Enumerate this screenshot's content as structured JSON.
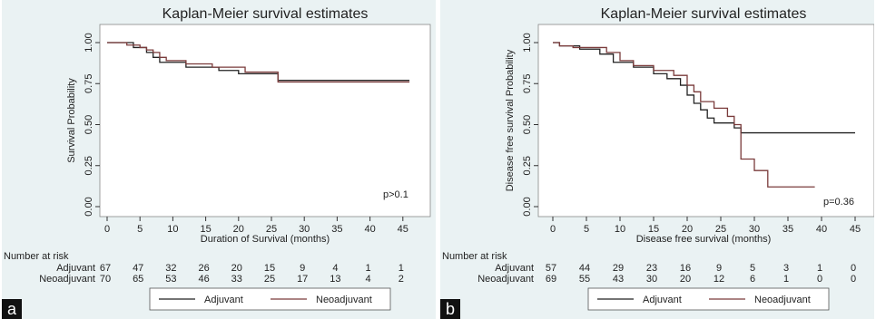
{
  "panels": [
    {
      "id": "a",
      "letter": "a",
      "title": "Kaplan-Meier survival estimates",
      "xlabel": "Duration of Survival (months)",
      "ylabel": "Survival Probability",
      "annotation": "p>0.1",
      "risk_header": "Number at risk",
      "legend": [
        "Adjuvant",
        "Neoadjuvant"
      ]
    },
    {
      "id": "b",
      "letter": "b",
      "title": "Kaplan-Meier survival estimates",
      "xlabel": "Disease free survival (months)",
      "ylabel": "Disease free survival Probability",
      "annotation": "p=0.36",
      "risk_header": "Number at risk",
      "legend": [
        "Adjuvant",
        "Neoadjuvant"
      ]
    }
  ],
  "chart_data": [
    {
      "type": "line",
      "step": true,
      "title": "Kaplan-Meier survival estimates",
      "xlabel": "Duration of Survival (months)",
      "ylabel": "Survival Probability",
      "xlim": [
        0,
        45
      ],
      "ylim": [
        0,
        1
      ],
      "xticks": [
        "0",
        "5",
        "10",
        "15",
        "20",
        "25",
        "30",
        "35",
        "40",
        "45"
      ],
      "yticks": [
        "0.00",
        "0.25",
        "0.50",
        "0.75",
        "1.00"
      ],
      "annotation": "p>0.1",
      "series": [
        {
          "name": "Adjuvant",
          "color": "#222222",
          "x": [
            0,
            4,
            6,
            7,
            8,
            12,
            17,
            20,
            26,
            46
          ],
          "y": [
            1.0,
            0.97,
            0.94,
            0.91,
            0.88,
            0.85,
            0.83,
            0.81,
            0.77,
            0.77
          ]
        },
        {
          "name": "Neoadjuvant",
          "color": "#7a3b3b",
          "x": [
            0,
            3,
            5,
            6,
            7,
            8,
            9,
            12,
            16,
            21,
            26,
            46
          ],
          "y": [
            1.0,
            0.985,
            0.97,
            0.955,
            0.94,
            0.91,
            0.89,
            0.87,
            0.85,
            0.82,
            0.76,
            0.76
          ]
        }
      ],
      "risk_table": {
        "header": "Number at risk",
        "times": [
          0,
          5,
          10,
          15,
          20,
          25,
          30,
          35,
          40,
          45
        ],
        "rows": [
          {
            "label": "Adjuvant",
            "values": [
              "67",
              "47",
              "32",
              "26",
              "20",
              "15",
              "9",
              "4",
              "1",
              "1"
            ]
          },
          {
            "label": "Neoadjuvant",
            "values": [
              "70",
              "65",
              "53",
              "46",
              "33",
              "25",
              "17",
              "13",
              "4",
              "2"
            ]
          }
        ]
      },
      "legend_position": "bottom"
    },
    {
      "type": "line",
      "step": true,
      "title": "Kaplan-Meier survival estimates",
      "xlabel": "Disease free survival (months)",
      "ylabel": "Disease free survival Probability",
      "xlim": [
        0,
        45
      ],
      "ylim": [
        0,
        1
      ],
      "xticks": [
        "0",
        "5",
        "10",
        "15",
        "20",
        "25",
        "30",
        "35",
        "40",
        "45"
      ],
      "yticks": [
        "0.00",
        "0.25",
        "0.50",
        "0.75",
        "1.00"
      ],
      "annotation": "p=0.36",
      "series": [
        {
          "name": "Adjuvant",
          "color": "#222222",
          "x": [
            0,
            1,
            4,
            7,
            9,
            12,
            15,
            17,
            19,
            20,
            21,
            22,
            23,
            24,
            27,
            28,
            45
          ],
          "y": [
            1.0,
            0.98,
            0.96,
            0.93,
            0.88,
            0.85,
            0.81,
            0.78,
            0.74,
            0.68,
            0.63,
            0.59,
            0.54,
            0.51,
            0.48,
            0.45,
            0.45
          ]
        },
        {
          "name": "Neoadjuvant",
          "color": "#7a3b3b",
          "x": [
            0,
            1,
            3,
            8,
            10,
            12,
            15,
            18,
            20,
            21,
            22,
            24,
            26,
            27,
            28,
            30,
            32,
            39
          ],
          "y": [
            1.0,
            0.98,
            0.97,
            0.94,
            0.89,
            0.86,
            0.83,
            0.8,
            0.74,
            0.7,
            0.64,
            0.6,
            0.55,
            0.5,
            0.29,
            0.22,
            0.12,
            0.12
          ]
        }
      ],
      "risk_table": {
        "header": "Number at risk",
        "times": [
          0,
          5,
          10,
          15,
          20,
          25,
          30,
          35,
          40,
          45
        ],
        "rows": [
          {
            "label": "Adjuvant",
            "values": [
              "57",
              "44",
              "29",
              "23",
              "16",
              "9",
              "5",
              "3",
              "1",
              "0"
            ]
          },
          {
            "label": "Neoadjuvant",
            "values": [
              "69",
              "55",
              "43",
              "30",
              "20",
              "12",
              "6",
              "1",
              "0",
              "0"
            ]
          }
        ]
      },
      "legend_position": "bottom"
    }
  ]
}
